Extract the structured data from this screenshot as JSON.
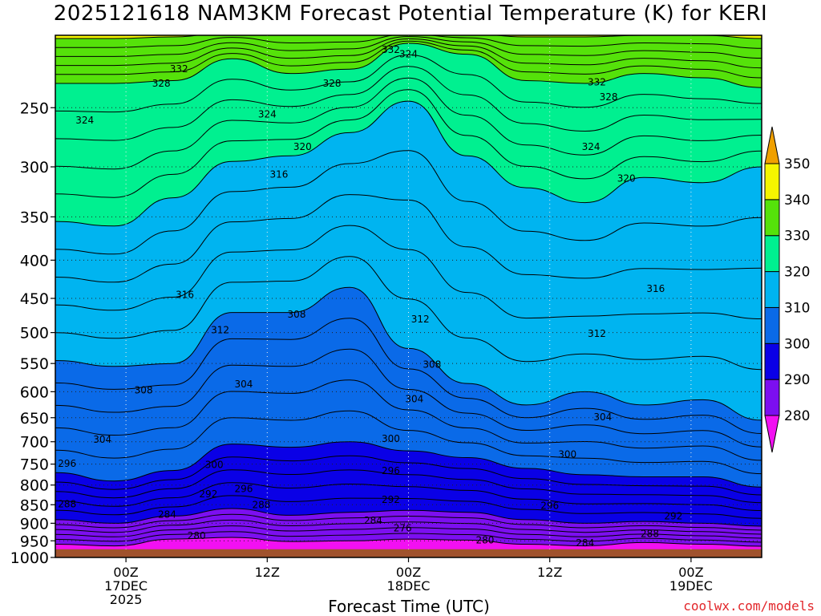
{
  "title": "2025121618 NAM3KM Forecast Potential Temperature (K) for KERI",
  "x_axis_title": "Forecast Time (UTC)",
  "watermark": "coolwx.com/models",
  "colors": {
    "ground": "#a0522d",
    "bands": [
      {
        "min": 270,
        "max": 280,
        "color": "#f210f2"
      },
      {
        "min": 280,
        "max": 290,
        "color": "#7c0ff0"
      },
      {
        "min": 290,
        "max": 300,
        "color": "#0a00e6"
      },
      {
        "min": 300,
        "max": 310,
        "color": "#0a6ae8"
      },
      {
        "min": 310,
        "max": 320,
        "color": "#00b4f0"
      },
      {
        "min": 320,
        "max": 330,
        "color": "#00f090"
      },
      {
        "min": 330,
        "max": 340,
        "color": "#55e20a"
      },
      {
        "min": 340,
        "max": 350,
        "color": "#f5f500"
      },
      {
        "min": 350,
        "max": 360,
        "color": "#f0a000"
      }
    ]
  },
  "chart_data": {
    "type": "heatmap",
    "title": "2025121618 NAM3KM Forecast Potential Temperature (K) for KERI",
    "xlabel": "Forecast Time (UTC)",
    "ylabel": "",
    "y_scale": "log-pressure (hPa, inverted)",
    "ylim": [
      1000,
      200
    ],
    "y_ticks": [
      "250",
      "300",
      "350",
      "400",
      "450",
      "500",
      "550",
      "600",
      "650",
      "700",
      "750",
      "800",
      "850",
      "900",
      "950",
      "1000"
    ],
    "x_ticks": [
      {
        "label": [
          "00Z",
          "17DEC",
          "2025"
        ],
        "hour": 6
      },
      {
        "label": [
          "12Z"
        ],
        "hour": 18
      },
      {
        "label": [
          "00Z",
          "18DEC"
        ],
        "hour": 30
      },
      {
        "label": [
          "12Z"
        ],
        "hour": 42
      },
      {
        "label": [
          "00Z",
          "19DEC"
        ],
        "hour": 54
      }
    ],
    "xlim_hours": [
      0,
      60
    ],
    "grid": true,
    "colorbar": {
      "levels": [
        "280",
        "290",
        "300",
        "310",
        "320",
        "330",
        "340",
        "350"
      ],
      "placement": "right"
    },
    "contour_interval_K": 2,
    "isentropes_hPa": [
      {
        "theta": 280,
        "p": [
          960,
          965,
          945,
          940,
          952,
          950,
          945,
          948,
          960,
          965,
          955,
          960,
          966
        ]
      },
      {
        "theta": 290,
        "p": [
          890,
          900,
          880,
          860,
          878,
          870,
          865,
          870,
          890,
          900,
          895,
          900,
          908
        ]
      },
      {
        "theta": 300,
        "p": [
          770,
          790,
          765,
          705,
          712,
          700,
          720,
          735,
          760,
          775,
          780,
          780,
          805
        ]
      },
      {
        "theta": 310,
        "p": [
          545,
          555,
          550,
          470,
          470,
          435,
          525,
          585,
          625,
          600,
          625,
          615,
          655
        ]
      },
      {
        "theta": 320,
        "p": [
          355,
          360,
          330,
          295,
          290,
          270,
          245,
          290,
          320,
          335,
          310,
          315,
          300
        ]
      },
      {
        "theta": 330,
        "p": [
          232,
          232,
          230,
          215,
          225,
          222,
          205,
          212,
          230,
          232,
          225,
          228,
          235
        ]
      },
      {
        "theta": 340,
        "p": [
          202,
          202,
          201,
          198,
          200,
          200,
          198,
          199,
          201,
          201,
          200,
          200,
          202
        ]
      }
    ],
    "isentrope_hours": [
      0,
      5,
      10,
      15,
      20,
      25,
      30,
      35,
      40,
      45,
      50,
      55,
      60
    ],
    "contour_labels": [
      {
        "text": "332",
        "hour": 10.5,
        "p": 222
      },
      {
        "text": "328",
        "hour": 9,
        "p": 232
      },
      {
        "text": "324",
        "hour": 2.5,
        "p": 260
      },
      {
        "text": "324",
        "hour": 18,
        "p": 255
      },
      {
        "text": "328",
        "hour": 23.5,
        "p": 232
      },
      {
        "text": "332",
        "hour": 28.5,
        "p": 209
      },
      {
        "text": "324",
        "hour": 30,
        "p": 212
      },
      {
        "text": "320",
        "hour": 21,
        "p": 282
      },
      {
        "text": "316",
        "hour": 19,
        "p": 307
      },
      {
        "text": "332",
        "hour": 46,
        "p": 231
      },
      {
        "text": "328",
        "hour": 47,
        "p": 242
      },
      {
        "text": "324",
        "hour": 45.5,
        "p": 282
      },
      {
        "text": "320",
        "hour": 48.5,
        "p": 311
      },
      {
        "text": "316",
        "hour": 11,
        "p": 445
      },
      {
        "text": "316",
        "hour": 51,
        "p": 437
      },
      {
        "text": "312",
        "hour": 14,
        "p": 496
      },
      {
        "text": "312",
        "hour": 31,
        "p": 480
      },
      {
        "text": "312",
        "hour": 46,
        "p": 502
      },
      {
        "text": "308",
        "hour": 20.5,
        "p": 473
      },
      {
        "text": "308",
        "hour": 32,
        "p": 552
      },
      {
        "text": "308",
        "hour": 7.5,
        "p": 597
      },
      {
        "text": "304",
        "hour": 16,
        "p": 586
      },
      {
        "text": "304",
        "hour": 30.5,
        "p": 614
      },
      {
        "text": "304",
        "hour": 46.5,
        "p": 649
      },
      {
        "text": "304",
        "hour": 4,
        "p": 695
      },
      {
        "text": "300",
        "hour": 28.5,
        "p": 694
      },
      {
        "text": "300",
        "hour": 43.5,
        "p": 728
      },
      {
        "text": "300",
        "hour": 13.5,
        "p": 752
      },
      {
        "text": "296",
        "hour": 1,
        "p": 749
      },
      {
        "text": "296",
        "hour": 28.5,
        "p": 766
      },
      {
        "text": "296",
        "hour": 16,
        "p": 809
      },
      {
        "text": "296",
        "hour": 42,
        "p": 853
      },
      {
        "text": "292",
        "hour": 13,
        "p": 823
      },
      {
        "text": "292",
        "hour": 28.5,
        "p": 837
      },
      {
        "text": "292",
        "hour": 52.5,
        "p": 880
      },
      {
        "text": "288",
        "hour": 1,
        "p": 848
      },
      {
        "text": "288",
        "hour": 17.5,
        "p": 851
      },
      {
        "text": "288",
        "hour": 50.5,
        "p": 930
      },
      {
        "text": "284",
        "hour": 9.5,
        "p": 876
      },
      {
        "text": "284",
        "hour": 27,
        "p": 893
      },
      {
        "text": "284",
        "hour": 45,
        "p": 957
      },
      {
        "text": "276",
        "hour": 29.5,
        "p": 914
      },
      {
        "text": "280",
        "hour": 12,
        "p": 936
      },
      {
        "text": "280",
        "hour": 36.5,
        "p": 948
      }
    ]
  }
}
